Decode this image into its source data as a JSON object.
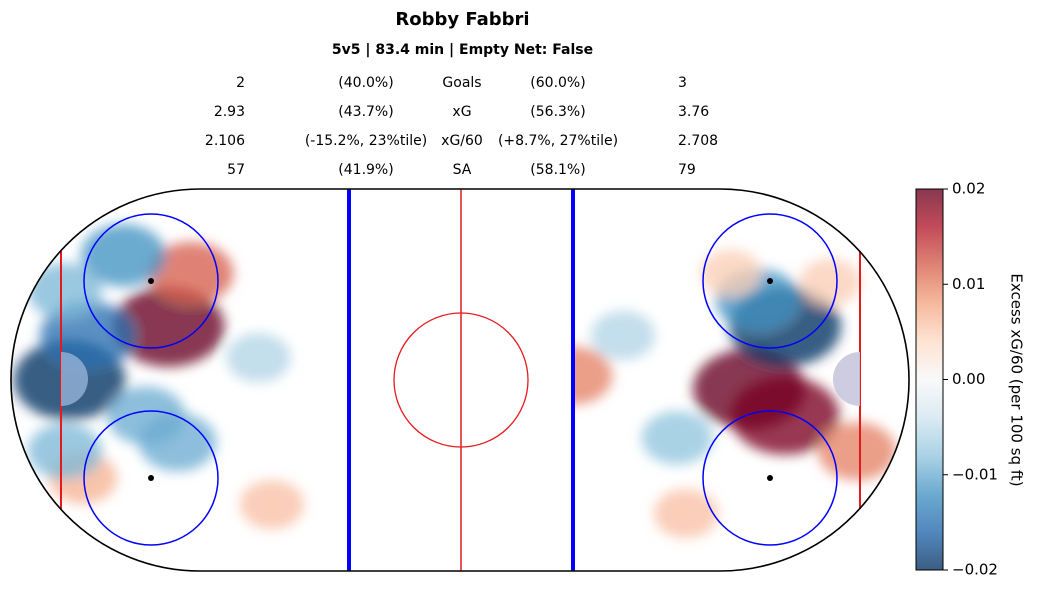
{
  "title": "Robby Fabbri",
  "subtitle": "5v5 | 83.4 min | Empty Net: False",
  "stats": [
    {
      "left_value": "2",
      "left_pct": "(40.0%)",
      "label": "Goals",
      "right_pct": "(60.0%)",
      "right_value": "3"
    },
    {
      "left_value": "2.93",
      "left_pct": "(43.7%)",
      "label": "xG",
      "right_pct": "(56.3%)",
      "right_value": "3.76"
    },
    {
      "left_value": "2.106",
      "left_pct": "(-15.2%, 23%tile)",
      "label": "xG/60",
      "right_pct": "(+8.7%, 27%tile)",
      "right_value": "2.708"
    },
    {
      "left_value": "57",
      "left_pct": "(41.9%)",
      "label": "SA",
      "right_pct": "(58.1%)",
      "right_value": "79"
    }
  ],
  "colorbar": {
    "label": "Excess xG/60 (per 100 sq ft)",
    "min": -0.02,
    "max": 0.02,
    "ticks": [
      "0.02",
      "0.01",
      "0.00",
      "−0.01",
      "−0.02"
    ]
  },
  "chart_data": {
    "type": "heatmap",
    "title": "Robby Fabbri",
    "subtitle": "5v5 | 83.4 min | Empty Net: False",
    "colormap": "RdBu_r",
    "value_range": [
      -0.02,
      0.02
    ],
    "hotspots": [
      {
        "side": "left",
        "x": -65,
        "y": 12,
        "value": 0.02
      },
      {
        "side": "left",
        "x": -60,
        "y": 24,
        "value": 0.012
      },
      {
        "side": "left",
        "x": -87,
        "y": 0,
        "value": -0.02
      },
      {
        "side": "left",
        "x": -83,
        "y": 10,
        "value": -0.015
      },
      {
        "side": "left",
        "x": -75,
        "y": 28,
        "value": -0.012
      },
      {
        "side": "left",
        "x": -63,
        "y": -14,
        "value": -0.01
      },
      {
        "side": "left",
        "x": -70,
        "y": -8,
        "value": -0.01
      },
      {
        "side": "left",
        "x": -84,
        "y": -22,
        "value": 0.007
      },
      {
        "side": "left",
        "x": -42,
        "y": -28,
        "value": 0.006
      },
      {
        "side": "left",
        "x": -45,
        "y": 5,
        "value": -0.006
      },
      {
        "side": "left",
        "x": -88,
        "y": 20,
        "value": -0.009
      },
      {
        "side": "left",
        "x": -88,
        "y": -16,
        "value": -0.009
      },
      {
        "side": "right",
        "x": 25,
        "y": 1,
        "value": 0.01
      },
      {
        "side": "right",
        "x": 64,
        "y": -2,
        "value": 0.02
      },
      {
        "side": "right",
        "x": 72,
        "y": -8,
        "value": 0.019
      },
      {
        "side": "right",
        "x": 72,
        "y": 12,
        "value": -0.02
      },
      {
        "side": "right",
        "x": 66,
        "y": 18,
        "value": -0.012
      },
      {
        "side": "right",
        "x": 60,
        "y": 24,
        "value": 0.005
      },
      {
        "side": "right",
        "x": 88,
        "y": -16,
        "value": 0.01
      },
      {
        "side": "right",
        "x": 50,
        "y": -30,
        "value": 0.006
      },
      {
        "side": "right",
        "x": 36,
        "y": 10,
        "value": -0.006
      },
      {
        "side": "right",
        "x": 48,
        "y": -13,
        "value": -0.008
      },
      {
        "side": "right",
        "x": 82,
        "y": 22,
        "value": 0.005
      }
    ]
  }
}
